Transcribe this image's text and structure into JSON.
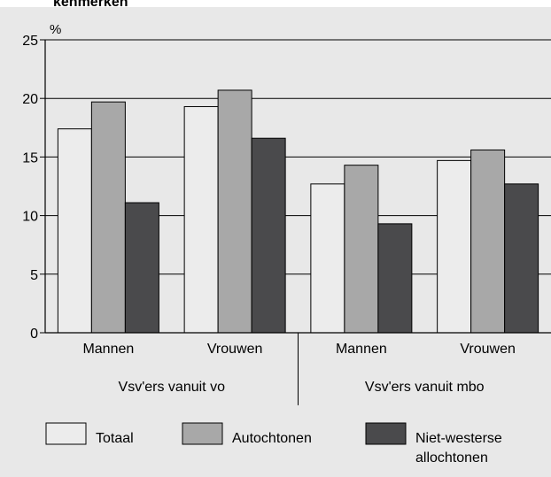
{
  "chart_data": {
    "type": "bar",
    "title": "",
    "cut_title": "kenmerken",
    "ylabel": "%",
    "ylim": [
      0,
      25
    ],
    "yticks": [
      0,
      5,
      10,
      15,
      20,
      25
    ],
    "grid": true,
    "categories": [
      "Mannen",
      "Vrouwen",
      "Mannen",
      "Vrouwen"
    ],
    "groups": [
      "Vsv'ers vanuit vo",
      "Vsv'ers vanuit mbo"
    ],
    "series": [
      {
        "name": "Totaal",
        "color": "#ececec",
        "values": [
          17.4,
          19.3,
          12.7,
          14.7
        ]
      },
      {
        "name": "Autochtonen",
        "color": "#a8a8a8",
        "values": [
          19.7,
          20.7,
          14.3,
          15.6
        ]
      },
      {
        "name": "Niet-westerse allochtonen",
        "legend_lines": [
          "Niet-westerse",
          "allochtonen"
        ],
        "color": "#4a4a4c",
        "values": [
          11.1,
          16.6,
          9.3,
          12.7
        ]
      }
    ],
    "legend_position": "bottom"
  }
}
